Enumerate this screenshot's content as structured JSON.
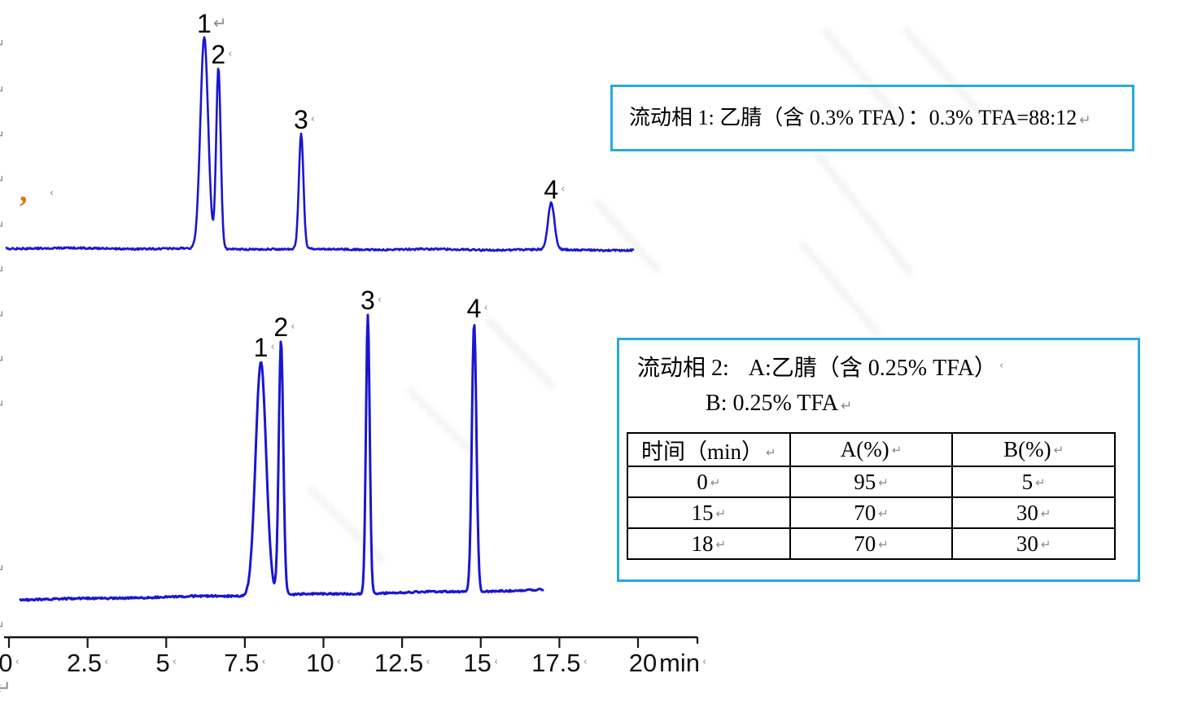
{
  "page": {
    "formatting_marks": {
      "paragraph": "↵",
      "line_break": "‹"
    },
    "stray_text": ",",
    "colors": {
      "trace_blue": "#1a16d0",
      "box_border_cyan": "#29aadc",
      "axis_black": "#151515",
      "mark_gray": "#8c8c8c",
      "watermark_gray": "#9a9a9a"
    }
  },
  "box1": {
    "text": "流动相 1: 乙腈（含 0.3% TFA）：0.3% TFA=88:12"
  },
  "box2": {
    "line1_prefix": "流动相 2:",
    "line1_text": "A:乙腈（含 0.25% TFA）",
    "line2_text": "B: 0.25% TFA",
    "table": {
      "headers": [
        "时间（min）",
        "A(%)",
        "B(%)"
      ],
      "rows": [
        [
          "0",
          "95",
          "5"
        ],
        [
          "15",
          "70",
          "30"
        ],
        [
          "18",
          "70",
          "30"
        ]
      ]
    }
  },
  "chart_data": [
    {
      "type": "line",
      "name": "chromatogram-mobile-phase-1",
      "x_unit": "min",
      "xlim": [
        0,
        20
      ],
      "x_ticks": [
        "0",
        "2.5",
        "5",
        "7.5",
        "10",
        "12.5",
        "15",
        "17.5",
        "20"
      ],
      "grid": false,
      "peaks": [
        {
          "label": "1",
          "rt_min": 6.21,
          "rel_height": 1.0,
          "sigma_min": 0.124,
          "mark": "paragraph"
        },
        {
          "label": "2",
          "rt_min": 6.66,
          "rel_height": 0.854,
          "sigma_min": 0.072,
          "mark": "break"
        },
        {
          "label": "3",
          "rt_min": 9.29,
          "rel_height": 0.546,
          "sigma_min": 0.072,
          "mark": "break"
        },
        {
          "label": "4",
          "rt_min": 17.24,
          "rel_height": 0.22,
          "sigma_min": 0.104,
          "mark": "break"
        }
      ]
    },
    {
      "type": "line",
      "name": "chromatogram-mobile-phase-2",
      "x_unit": "min",
      "xlim": [
        0,
        20
      ],
      "x_ticks": [
        "0",
        "2.5",
        "5",
        "7.5",
        "10",
        "12.5",
        "15",
        "17.5",
        "20"
      ],
      "grid": false,
      "peaks": [
        {
          "label": "1",
          "rt_min": 8.01,
          "rel_height": 0.837,
          "sigma_min": 0.168,
          "mark": "break"
        },
        {
          "label": "2",
          "rt_min": 8.65,
          "rel_height": 0.91,
          "sigma_min": 0.072,
          "mark": "break"
        },
        {
          "label": "3",
          "rt_min": 11.41,
          "rel_height": 1.0,
          "sigma_min": 0.06,
          "mark": "break"
        },
        {
          "label": "4",
          "rt_min": 14.79,
          "rel_height": 0.965,
          "sigma_min": 0.072,
          "mark": "break"
        }
      ]
    }
  ]
}
